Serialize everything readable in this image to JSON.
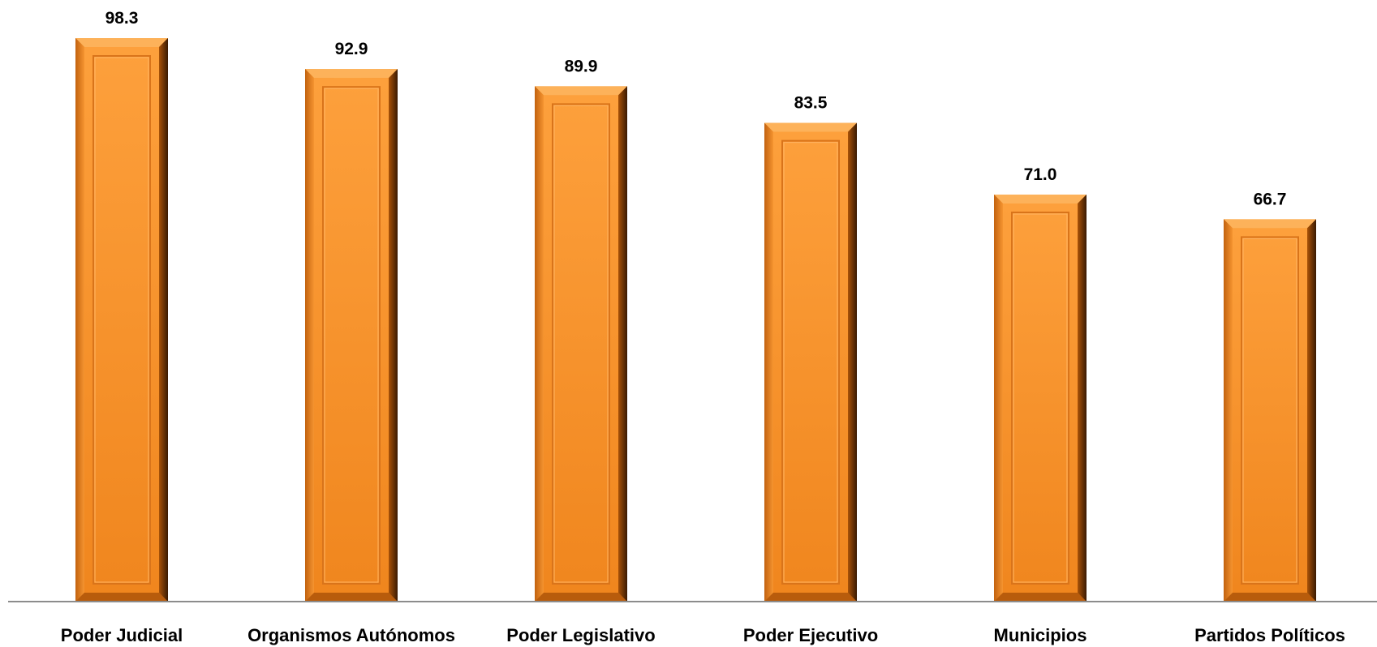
{
  "chart_data": {
    "type": "bar",
    "title": "",
    "xlabel": "",
    "ylabel": "",
    "categories": [
      "Poder Judicial",
      "Organismos Autónomos",
      "Poder Legislativo",
      "Poder Ejecutivo",
      "Municipios",
      "Partidos Políticos"
    ],
    "values": [
      98.3,
      92.9,
      89.9,
      83.5,
      71.0,
      66.7
    ],
    "value_labels": [
      "98.3",
      "92.9",
      "89.9",
      "83.5",
      "71.0",
      "66.7"
    ],
    "ylim": [
      0,
      100
    ],
    "grid": false,
    "legend": "none",
    "colors": {
      "bar_light": "#FDA03C",
      "bar_mid": "#F28A24",
      "bar_dark": "#C2620F",
      "bar_shadow": "#5A2C04",
      "axis": "#8C8C8C"
    }
  }
}
